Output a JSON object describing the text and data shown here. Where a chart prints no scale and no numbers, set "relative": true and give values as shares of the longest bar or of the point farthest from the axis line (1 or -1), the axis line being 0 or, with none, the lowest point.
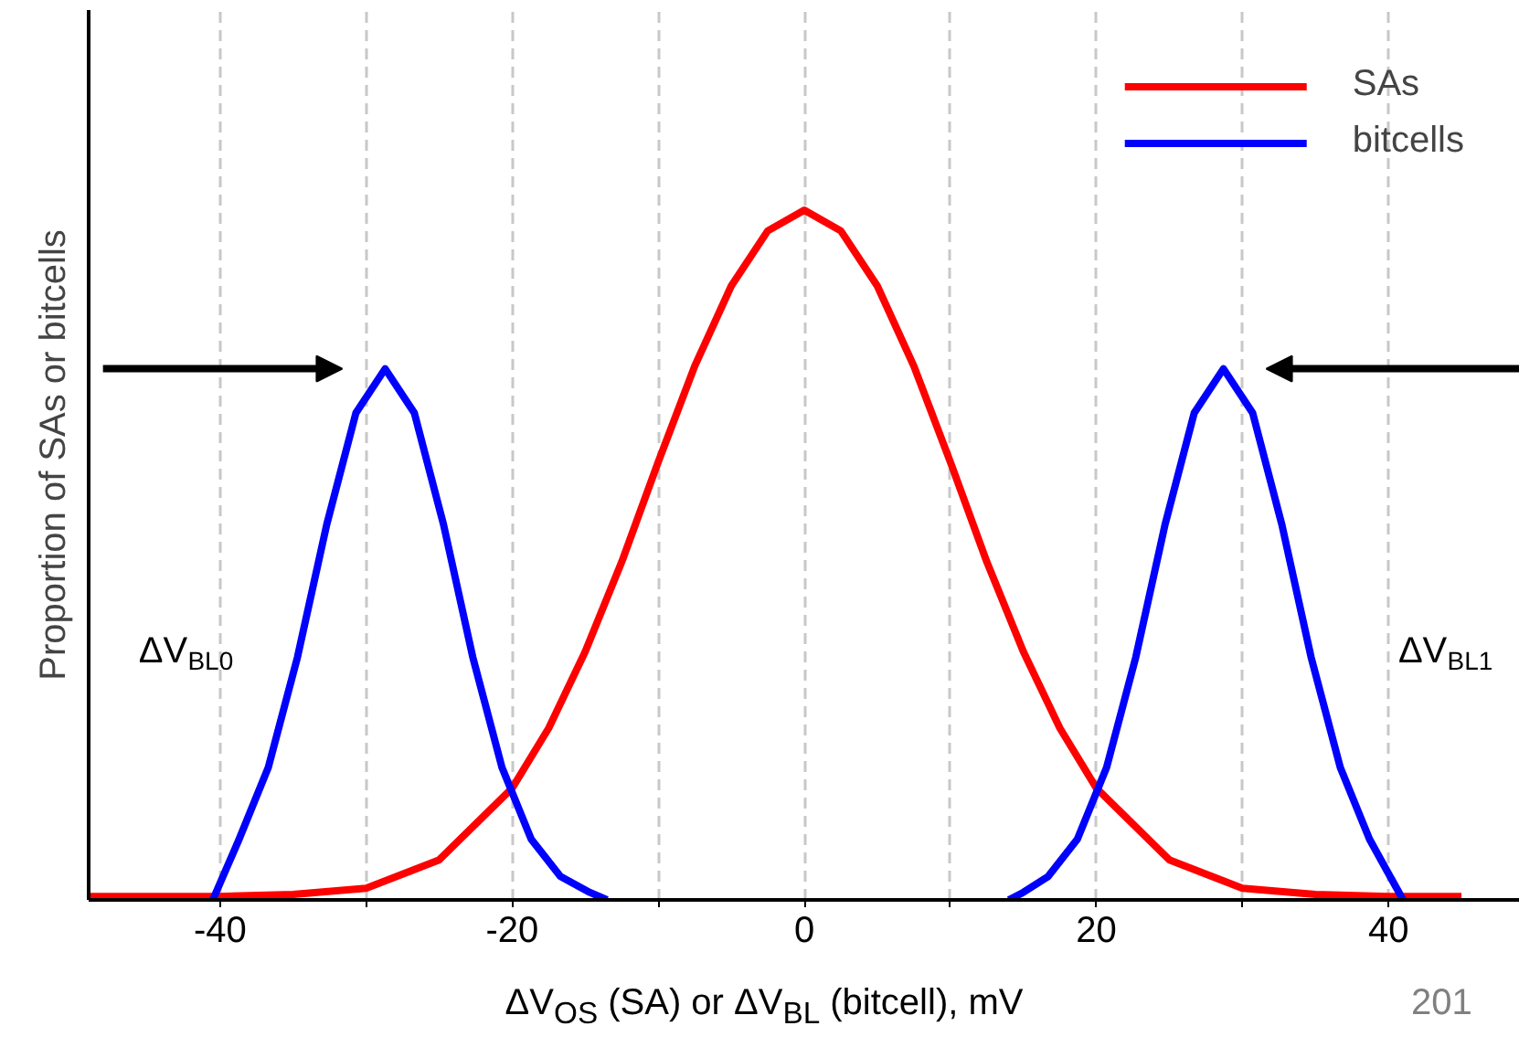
{
  "chart_data": {
    "type": "line",
    "relative": true,
    "xlabel": "ΔV$_{OS}$ (SA) or ΔV$_{BL}$ (bitcell), mV",
    "ylabel": "Proportion of SAs or bitcells",
    "xlim": [
      -49,
      49
    ],
    "xticks": [
      -40,
      {
        "value": -30,
        "label": null
      },
      -20,
      {
        "value": -10,
        "label": null
      },
      0,
      {
        "value": 10,
        "label": null
      },
      20,
      {
        "value": 30,
        "label": null
      },
      40
    ],
    "grid": "x",
    "legend": "top right",
    "series": [
      {
        "name": "SAs",
        "color": "#ff0000",
        "x": [
          -49,
          -45,
          -40,
          -35,
          -30,
          -25,
          -20,
          -17.5,
          -15,
          -12.5,
          -10,
          -7.5,
          -5,
          -2.5,
          0,
          2.5,
          5,
          7.5,
          10,
          12.5,
          15,
          17.5,
          20,
          25,
          30,
          35,
          40,
          45
        ],
        "values": [
          0.005,
          0.005,
          0.005,
          0.008,
          0.017,
          0.058,
          0.162,
          0.249,
          0.36,
          0.49,
          0.635,
          0.774,
          0.89,
          0.97,
          1,
          0.97,
          0.89,
          0.774,
          0.635,
          0.49,
          0.36,
          0.249,
          0.162,
          0.058,
          0.017,
          0.008,
          0.005,
          0.005
        ]
      },
      {
        "name": "bitcells",
        "color": "#0000ff",
        "x": [
          -40.5,
          -38.7,
          -36.7,
          -34.7,
          -32.7,
          -30.7,
          -28.7,
          -26.7,
          -24.7,
          -22.7,
          -20.7,
          -18.7,
          -16.7,
          -14.7,
          -13.5,
          0,
          14,
          15,
          16.7,
          18.7,
          20.7,
          22.7,
          24.7,
          26.7,
          28.7,
          30.7,
          32.7,
          34.7,
          36.7,
          38.7,
          41
        ],
        "values": [
          0,
          0.088,
          0.192,
          0.352,
          0.544,
          0.706,
          0.77,
          0.706,
          0.544,
          0.352,
          0.192,
          0.088,
          0.034,
          0.011,
          0,
          null,
          0,
          0.011,
          0.034,
          0.088,
          0.192,
          0.352,
          0.544,
          0.706,
          0.77,
          0.706,
          0.544,
          0.352,
          0.192,
          0.088,
          0
        ]
      }
    ],
    "annotations": [
      "ΔV$_{BL0}$",
      "ΔV$_{BL1}$",
      "201"
    ]
  }
}
